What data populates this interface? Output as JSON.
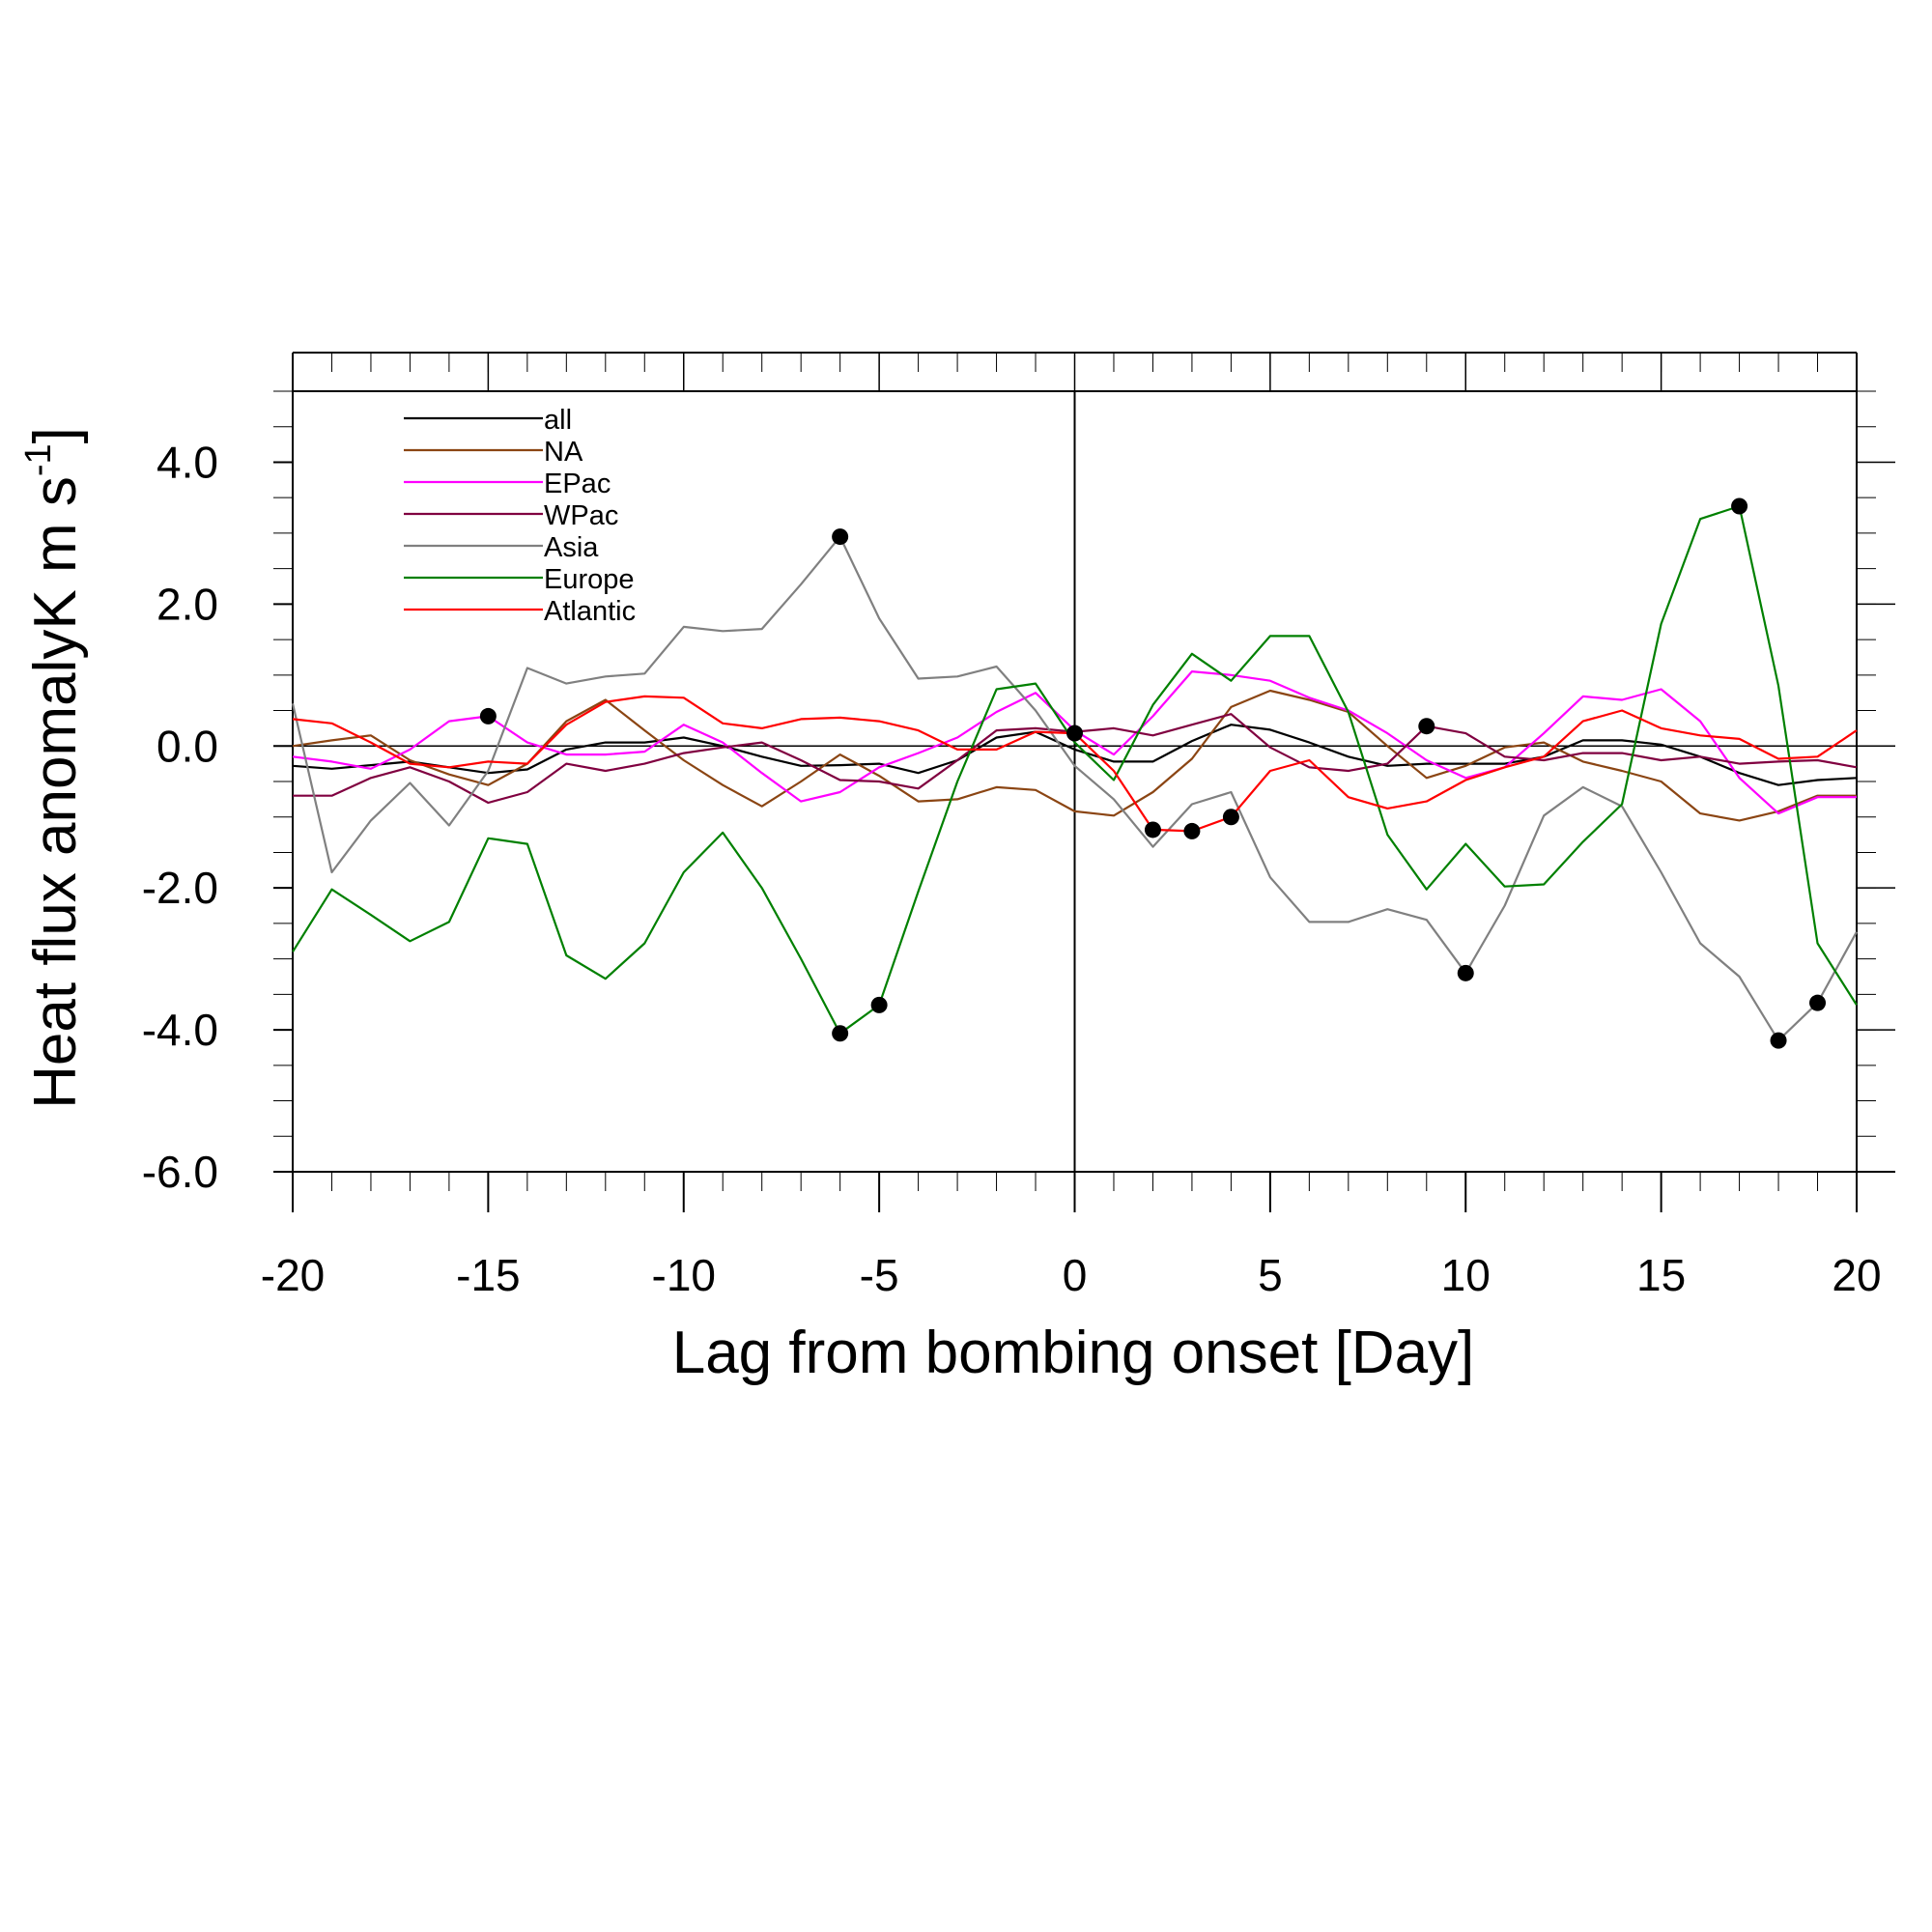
{
  "chart_data": {
    "type": "line",
    "title": "",
    "xlabel": "Lag from bombing onset [Day]",
    "ylabel": {
      "text": "Heat flux anomalyK m s",
      "sup": "-1"
    },
    "xlim": [
      -20,
      20
    ],
    "ylim": [
      -6,
      5
    ],
    "x_ticks": [
      -20,
      -15,
      -10,
      -5,
      0,
      5,
      10,
      15,
      20
    ],
    "x_tick_labels": [
      "-20",
      "-15",
      "-10",
      "-5",
      "0",
      "5",
      "10",
      "15",
      "20"
    ],
    "y_ticks": [
      -6,
      -4,
      -2,
      0,
      2,
      4
    ],
    "y_tick_labels": [
      "-6.0",
      "-4.0",
      "-2.0",
      "0.0",
      "2.0",
      "4.0"
    ],
    "grid": false,
    "zero_line": true,
    "vertical_line_at_x": 0,
    "legend": {
      "placement": "top-left"
    },
    "x": [
      -20,
      -19,
      -18,
      -17,
      -16,
      -15,
      -14,
      -13,
      -12,
      -11,
      -10,
      -9,
      -8,
      -7,
      -6,
      -5,
      -4,
      -3,
      -2,
      -1,
      0,
      1,
      2,
      3,
      4,
      5,
      6,
      7,
      8,
      9,
      10,
      11,
      12,
      13,
      14,
      15,
      16,
      17,
      18,
      19,
      20
    ],
    "series": [
      {
        "name": "all",
        "color": "#000000",
        "values": [
          -0.28,
          -0.32,
          -0.27,
          -0.22,
          -0.3,
          -0.38,
          -0.33,
          -0.05,
          0.05,
          0.05,
          0.12,
          0.0,
          -0.15,
          -0.28,
          -0.27,
          -0.25,
          -0.38,
          -0.2,
          0.12,
          0.2,
          -0.05,
          -0.22,
          -0.22,
          0.07,
          0.3,
          0.23,
          0.05,
          -0.15,
          -0.28,
          -0.25,
          -0.25,
          -0.25,
          -0.15,
          0.08,
          0.08,
          0.02,
          -0.15,
          -0.38,
          -0.55,
          -0.48,
          -0.45
        ],
        "significant_x": []
      },
      {
        "name": "NA",
        "color": "#8B4513",
        "values": [
          0.0,
          0.08,
          0.15,
          -0.2,
          -0.4,
          -0.55,
          -0.25,
          0.35,
          0.65,
          0.22,
          -0.2,
          -0.55,
          -0.85,
          -0.5,
          -0.12,
          -0.42,
          -0.78,
          -0.75,
          -0.58,
          -0.62,
          -0.92,
          -0.98,
          -0.65,
          -0.18,
          0.55,
          0.78,
          0.65,
          0.48,
          0.0,
          -0.45,
          -0.28,
          -0.02,
          0.05,
          -0.22,
          -0.35,
          -0.5,
          -0.95,
          -1.05,
          -0.92,
          -0.7,
          -0.7
        ],
        "significant_x": []
      },
      {
        "name": "EPac",
        "color": "#FF00FF",
        "values": [
          -0.15,
          -0.22,
          -0.32,
          -0.05,
          0.35,
          0.42,
          0.05,
          -0.12,
          -0.12,
          -0.08,
          0.3,
          0.05,
          -0.38,
          -0.78,
          -0.65,
          -0.3,
          -0.1,
          0.12,
          0.48,
          0.75,
          0.22,
          -0.12,
          0.42,
          1.05,
          1.0,
          0.92,
          0.68,
          0.5,
          0.18,
          -0.2,
          -0.45,
          -0.3,
          0.18,
          0.7,
          0.65,
          0.8,
          0.35,
          -0.45,
          -0.95,
          -0.72,
          -0.72
        ],
        "significant_x": [
          -15
        ]
      },
      {
        "name": "WPac",
        "color": "#800040",
        "values": [
          -0.7,
          -0.7,
          -0.45,
          -0.3,
          -0.5,
          -0.8,
          -0.65,
          -0.25,
          -0.35,
          -0.25,
          -0.1,
          -0.02,
          0.05,
          -0.2,
          -0.48,
          -0.5,
          -0.6,
          -0.2,
          0.22,
          0.25,
          0.2,
          0.25,
          0.15,
          0.3,
          0.45,
          -0.02,
          -0.3,
          -0.35,
          -0.25,
          0.28,
          0.18,
          -0.15,
          -0.2,
          -0.1,
          -0.1,
          -0.2,
          -0.15,
          -0.25,
          -0.22,
          -0.2,
          -0.3
        ],
        "significant_x": [
          9
        ]
      },
      {
        "name": "Asia",
        "color": "#808080",
        "values": [
          0.6,
          -1.78,
          -1.05,
          -0.52,
          -1.12,
          -0.35,
          1.1,
          0.88,
          0.98,
          1.02,
          1.68,
          1.62,
          1.65,
          2.28,
          2.95,
          1.8,
          0.95,
          0.98,
          1.12,
          0.5,
          -0.28,
          -0.75,
          -1.42,
          -0.82,
          -0.65,
          -1.85,
          -2.48,
          -2.48,
          -2.3,
          -2.45,
          -3.2,
          -2.25,
          -0.98,
          -0.58,
          -0.85,
          -1.78,
          -2.78,
          -3.25,
          -4.15,
          -3.62,
          -2.62
        ],
        "significant_x": [
          -6,
          10,
          18,
          19
        ]
      },
      {
        "name": "Europe",
        "color": "#008000",
        "values": [
          -2.9,
          -2.02,
          -2.38,
          -2.75,
          -2.48,
          -1.3,
          -1.38,
          -2.95,
          -3.28,
          -2.78,
          -1.78,
          -1.22,
          -2.0,
          -3.0,
          -4.05,
          -3.65,
          -2.05,
          -0.5,
          0.8,
          0.88,
          0.05,
          -0.48,
          0.58,
          1.3,
          0.92,
          1.55,
          1.55,
          0.48,
          -1.25,
          -2.02,
          -1.38,
          -1.98,
          -1.95,
          -1.35,
          -0.82,
          1.72,
          3.2,
          3.38,
          0.85,
          -2.78,
          -3.65
        ],
        "significant_x": [
          -6,
          -5,
          17
        ]
      },
      {
        "name": "Atlantic",
        "color": "#FF0000",
        "values": [
          0.38,
          0.32,
          0.05,
          -0.25,
          -0.3,
          -0.22,
          -0.25,
          0.3,
          0.62,
          0.7,
          0.68,
          0.32,
          0.25,
          0.38,
          0.4,
          0.35,
          0.22,
          -0.05,
          -0.05,
          0.2,
          0.18,
          -0.35,
          -1.18,
          -1.2,
          -1.0,
          -0.35,
          -0.2,
          -0.72,
          -0.88,
          -0.78,
          -0.48,
          -0.3,
          -0.15,
          0.35,
          0.5,
          0.25,
          0.15,
          0.1,
          -0.18,
          -0.15,
          0.22
        ],
        "significant_x": [
          0,
          2,
          3,
          4
        ]
      }
    ]
  }
}
